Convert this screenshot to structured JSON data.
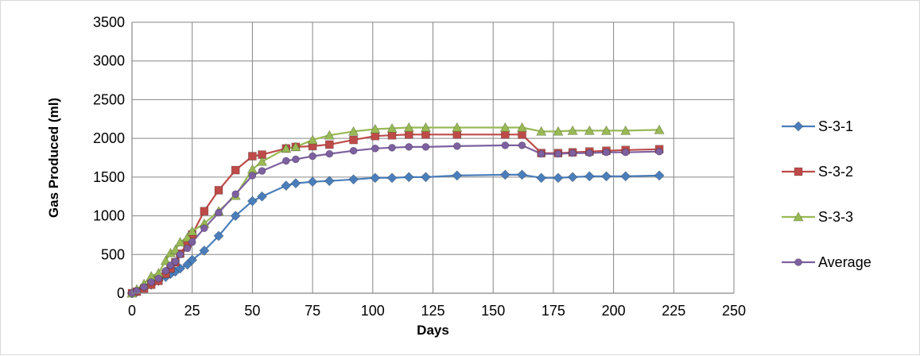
{
  "chart_data": {
    "type": "line",
    "xlabel": "Days",
    "ylabel": "Gas Produced (ml)",
    "xlim": [
      0,
      250
    ],
    "ylim": [
      0,
      3500
    ],
    "xticks": [
      "0",
      "25",
      "50",
      "75",
      "100",
      "125",
      "150",
      "175",
      "200",
      "225",
      "250"
    ],
    "yticks": [
      "0",
      "500",
      "1000",
      "1500",
      "2000",
      "2500",
      "3000",
      "3500"
    ],
    "grid": true,
    "legend_position": "right",
    "x": [
      0,
      2,
      5,
      8,
      11,
      14,
      16,
      18,
      20,
      23,
      25,
      30,
      36,
      43,
      50,
      54,
      64,
      68,
      75,
      82,
      92,
      101,
      108,
      115,
      122,
      135,
      155,
      162,
      170,
      177,
      183,
      190,
      197,
      205,
      219
    ],
    "series": [
      {
        "name": "S-3-1",
        "color": "#4a7ebb",
        "marker": "diamond",
        "values": [
          0,
          20,
          70,
          110,
          160,
          210,
          250,
          280,
          320,
          370,
          430,
          550,
          740,
          1000,
          1190,
          1250,
          1390,
          1420,
          1440,
          1450,
          1470,
          1490,
          1490,
          1500,
          1500,
          1520,
          1530,
          1530,
          1490,
          1490,
          1500,
          1510,
          1510,
          1510,
          1520
        ]
      },
      {
        "name": "S-3-2",
        "color": "#be4b48",
        "marker": "square",
        "values": [
          0,
          20,
          60,
          110,
          160,
          250,
          320,
          400,
          510,
          640,
          760,
          1060,
          1330,
          1590,
          1770,
          1790,
          1870,
          1890,
          1900,
          1920,
          1980,
          2030,
          2040,
          2050,
          2050,
          2050,
          2050,
          2050,
          1810,
          1810,
          1820,
          1830,
          1840,
          1850,
          1860
        ]
      },
      {
        "name": "S-3-3",
        "color": "#98b954",
        "marker": "triangle",
        "values": [
          0,
          50,
          120,
          220,
          260,
          420,
          520,
          560,
          660,
          720,
          800,
          900,
          1060,
          1260,
          1600,
          1700,
          1870,
          1890,
          1980,
          2040,
          2090,
          2120,
          2130,
          2140,
          2140,
          2140,
          2140,
          2140,
          2090,
          2090,
          2100,
          2100,
          2100,
          2100,
          2110
        ]
      },
      {
        "name": "Average",
        "color": "#7d60a0",
        "marker": "circle",
        "values": [
          0,
          30,
          80,
          145,
          190,
          290,
          360,
          410,
          500,
          580,
          660,
          840,
          1040,
          1280,
          1520,
          1580,
          1710,
          1730,
          1770,
          1800,
          1840,
          1870,
          1880,
          1890,
          1890,
          1900,
          1910,
          1910,
          1800,
          1800,
          1810,
          1810,
          1820,
          1820,
          1830
        ]
      }
    ]
  }
}
